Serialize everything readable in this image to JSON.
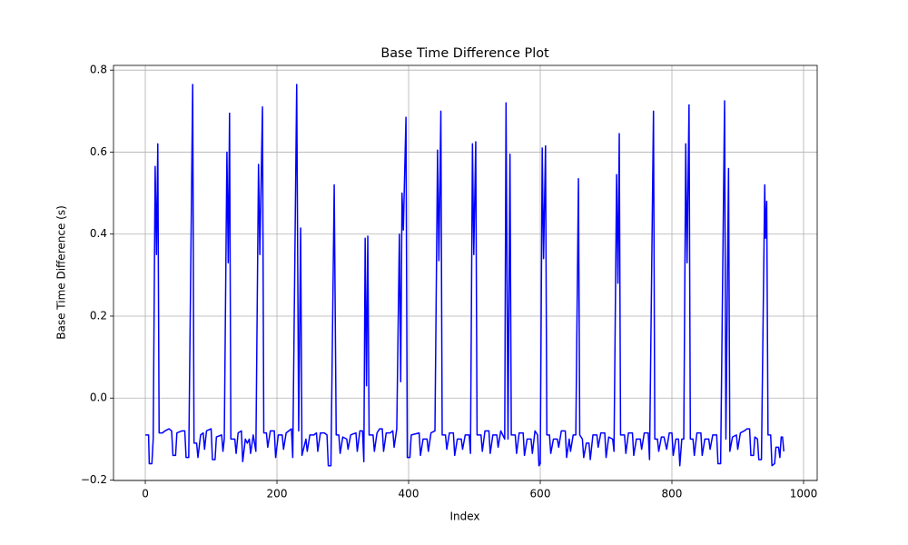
{
  "chart_data": {
    "type": "line",
    "title": "Base Time Difference Plot",
    "x_label": "Index",
    "y_label": "Base Time Difference (s)",
    "color": "#0000ff",
    "grid": true,
    "xlim": [
      -48.3,
      1020.7
    ],
    "ylim": [
      -0.2011,
      0.8115
    ],
    "xticks": [
      0,
      200,
      400,
      600,
      800,
      1000
    ],
    "yticks": [
      {
        "value": -0.2,
        "label": "−0.2"
      },
      {
        "value": 0,
        "label": "0.0"
      },
      0.2,
      0.4,
      0.6,
      0.8
    ],
    "x": [
      0,
      5,
      6,
      10,
      12,
      15,
      17,
      19,
      21,
      26,
      30,
      36,
      40,
      42,
      46,
      48,
      56,
      60,
      62,
      66,
      72,
      74,
      78,
      80,
      84,
      88,
      90,
      93,
      100,
      102,
      106,
      108,
      116,
      118,
      120,
      124,
      126,
      128,
      130,
      136,
      138,
      141,
      146,
      148,
      152,
      155,
      158,
      160,
      164,
      168,
      172,
      174,
      178,
      180,
      184,
      186,
      190,
      196,
      198,
      202,
      208,
      210,
      214,
      218,
      222,
      224,
      230,
      233,
      236,
      238,
      244,
      246,
      250,
      256,
      260,
      262,
      266,
      272,
      276,
      278,
      282,
      287,
      290,
      294,
      296,
      300,
      306,
      308,
      312,
      320,
      322,
      326,
      330,
      332,
      334,
      336,
      338,
      340,
      346,
      348,
      352,
      356,
      360,
      362,
      366,
      372,
      376,
      378,
      382,
      386,
      388,
      390,
      392,
      396,
      398,
      402,
      404,
      416,
      418,
      422,
      428,
      430,
      434,
      440,
      444,
      446,
      449,
      451,
      456,
      458,
      462,
      468,
      470,
      474,
      480,
      482,
      486,
      492,
      494,
      497,
      499,
      502,
      504,
      510,
      512,
      516,
      522,
      524,
      528,
      534,
      536,
      540,
      546,
      548,
      551,
      554,
      556,
      562,
      564,
      568,
      574,
      576,
      580,
      586,
      588,
      592,
      596,
      598,
      600,
      603,
      605,
      608,
      610,
      614,
      616,
      620,
      626,
      628,
      632,
      638,
      640,
      644,
      646,
      650,
      654,
      658,
      660,
      664,
      666,
      670,
      674,
      676,
      680,
      686,
      688,
      692,
      698,
      700,
      704,
      710,
      712,
      716,
      718,
      720,
      722,
      728,
      730,
      734,
      740,
      742,
      746,
      752,
      754,
      758,
      764,
      766,
      772,
      774,
      778,
      780,
      784,
      788,
      792,
      796,
      800,
      802,
      806,
      810,
      812,
      815,
      818,
      821,
      823,
      826,
      828,
      832,
      834,
      838,
      844,
      846,
      850,
      856,
      858,
      862,
      868,
      870,
      874,
      880,
      882,
      886,
      888,
      892,
      898,
      900,
      904,
      910,
      914,
      918,
      920,
      924,
      926,
      930,
      932,
      936,
      941,
      942,
      944,
      946,
      950,
      952,
      956,
      958,
      962,
      964,
      966,
      968,
      970
    ],
    "values": [
      -0.09,
      -0.09,
      -0.16,
      -0.16,
      -0.1,
      0.565,
      0.35,
      0.62,
      -0.085,
      -0.085,
      -0.08,
      -0.075,
      -0.08,
      -0.14,
      -0.14,
      -0.085,
      -0.08,
      -0.08,
      -0.145,
      -0.145,
      0.765,
      -0.11,
      -0.11,
      -0.145,
      -0.09,
      -0.085,
      -0.125,
      -0.08,
      -0.075,
      -0.15,
      -0.15,
      -0.095,
      -0.09,
      -0.13,
      -0.1,
      0.6,
      0.33,
      0.695,
      -0.1,
      -0.1,
      -0.135,
      -0.085,
      -0.08,
      -0.155,
      -0.1,
      -0.11,
      -0.1,
      -0.135,
      -0.09,
      -0.13,
      0.57,
      0.35,
      0.71,
      -0.085,
      -0.085,
      -0.12,
      -0.08,
      -0.08,
      -0.145,
      -0.09,
      -0.09,
      -0.125,
      -0.085,
      -0.08,
      -0.075,
      -0.145,
      0.765,
      -0.08,
      0.415,
      -0.14,
      -0.1,
      -0.13,
      -0.09,
      -0.09,
      -0.085,
      -0.13,
      -0.085,
      -0.085,
      -0.09,
      -0.165,
      -0.165,
      0.52,
      -0.09,
      -0.09,
      -0.135,
      -0.095,
      -0.1,
      -0.125,
      -0.09,
      -0.085,
      -0.13,
      -0.08,
      -0.08,
      -0.155,
      0.39,
      0.03,
      0.395,
      -0.09,
      -0.09,
      -0.13,
      -0.085,
      -0.075,
      -0.075,
      -0.13,
      -0.085,
      -0.085,
      -0.08,
      -0.12,
      -0.075,
      0.4,
      0.04,
      0.5,
      0.41,
      0.685,
      -0.145,
      -0.145,
      -0.09,
      -0.085,
      -0.14,
      -0.1,
      -0.1,
      -0.13,
      -0.085,
      -0.08,
      0.605,
      0.335,
      0.7,
      -0.09,
      -0.09,
      -0.125,
      -0.085,
      -0.085,
      -0.14,
      -0.1,
      -0.1,
      -0.125,
      -0.09,
      -0.09,
      -0.135,
      0.62,
      0.35,
      0.625,
      -0.09,
      -0.09,
      -0.13,
      -0.08,
      -0.08,
      -0.135,
      -0.09,
      -0.09,
      -0.12,
      -0.08,
      -0.1,
      0.72,
      -0.1,
      0.595,
      -0.09,
      -0.09,
      -0.135,
      -0.085,
      -0.085,
      -0.14,
      -0.1,
      -0.1,
      -0.135,
      -0.08,
      -0.09,
      -0.165,
      -0.16,
      0.61,
      0.34,
      0.615,
      -0.09,
      -0.09,
      -0.135,
      -0.1,
      -0.1,
      -0.12,
      -0.08,
      -0.08,
      -0.145,
      -0.1,
      -0.13,
      -0.09,
      -0.09,
      0.535,
      -0.09,
      -0.1,
      -0.145,
      -0.11,
      -0.11,
      -0.15,
      -0.09,
      -0.09,
      -0.12,
      -0.085,
      -0.085,
      -0.145,
      -0.095,
      -0.1,
      -0.13,
      0.545,
      0.28,
      0.645,
      -0.09,
      -0.09,
      -0.135,
      -0.085,
      -0.085,
      -0.14,
      -0.1,
      -0.1,
      -0.125,
      -0.085,
      -0.085,
      -0.15,
      0.7,
      -0.1,
      -0.1,
      -0.13,
      -0.095,
      -0.095,
      -0.125,
      -0.085,
      -0.085,
      -0.14,
      -0.1,
      -0.1,
      -0.165,
      -0.1,
      -0.1,
      0.62,
      0.33,
      0.715,
      -0.1,
      -0.1,
      -0.14,
      -0.085,
      -0.085,
      -0.14,
      -0.1,
      -0.1,
      -0.125,
      -0.09,
      -0.09,
      -0.16,
      -0.16,
      0.725,
      -0.1,
      0.56,
      -0.13,
      -0.095,
      -0.09,
      -0.125,
      -0.085,
      -0.08,
      -0.075,
      -0.075,
      -0.14,
      -0.14,
      -0.095,
      -0.1,
      -0.15,
      -0.15,
      0.52,
      0.39,
      0.48,
      -0.09,
      -0.09,
      -0.165,
      -0.16,
      -0.12,
      -0.12,
      -0.145,
      -0.095,
      -0.095,
      -0.13
    ]
  }
}
